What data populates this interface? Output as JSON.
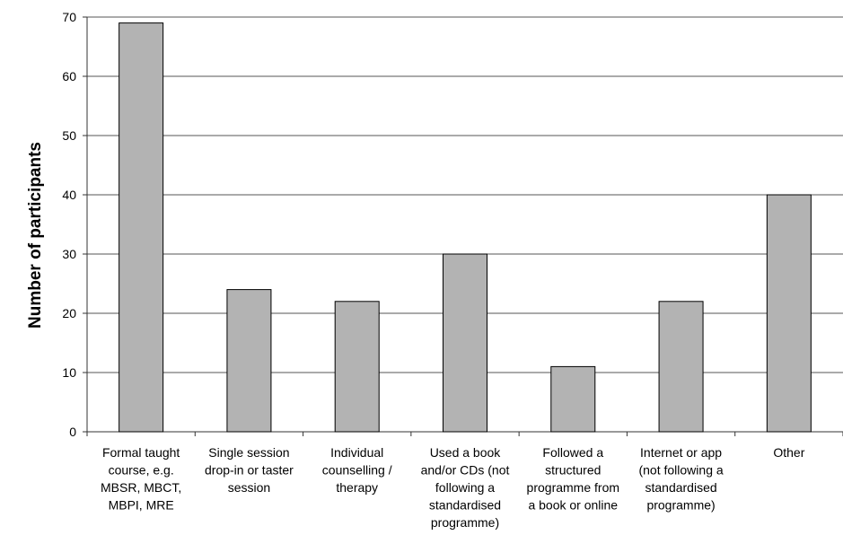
{
  "chart_data": {
    "type": "bar",
    "title": "",
    "xlabel": "",
    "ylabel": "Number of participants",
    "ylim": [
      0,
      70
    ],
    "yticks": [
      0,
      10,
      20,
      30,
      40,
      50,
      60,
      70
    ],
    "grid": true,
    "bar_color": "#b3b3b3",
    "categories": [
      "Formal taught course, e.g. MBSR, MBCT, MBPI, MRE",
      "Single session drop-in or taster session",
      "Individual counselling / therapy",
      "Used a book and/or CDs (not following a standardised programme)",
      "Followed a structured programme from a book or online",
      "Internet or app (not following a standardised programme)",
      "Other"
    ],
    "category_lines": [
      [
        "Formal taught",
        "course, e.g.",
        "MBSR, MBCT,",
        "MBPI, MRE"
      ],
      [
        "Single session",
        "drop-in or taster",
        "session"
      ],
      [
        "Individual",
        "counselling /",
        "therapy"
      ],
      [
        "Used a book",
        "and/or CDs (not",
        "following a",
        "standardised",
        "programme)"
      ],
      [
        "Followed a",
        "structured",
        "programme from",
        "a book or online"
      ],
      [
        "Internet or app",
        "(not following a",
        "standardised",
        "programme)"
      ],
      [
        "Other"
      ]
    ],
    "values": [
      69,
      24,
      22,
      30,
      11,
      22,
      40
    ]
  }
}
